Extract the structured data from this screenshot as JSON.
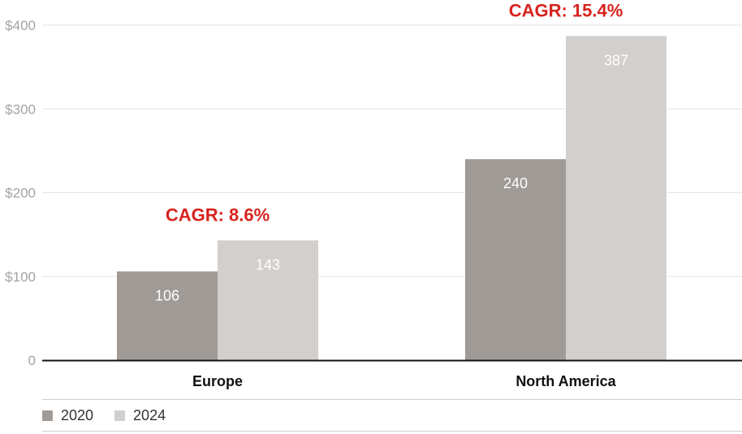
{
  "chart_data": {
    "type": "bar",
    "categories": [
      "Europe",
      "North America"
    ],
    "series": [
      {
        "name": "2020",
        "values": [
          106,
          240
        ],
        "color": "#a09b96"
      },
      {
        "name": "2024",
        "values": [
          143,
          387
        ],
        "color": "#d2cfcd"
      }
    ],
    "ylim": [
      0,
      400
    ],
    "yticks": [
      {
        "value": 0,
        "label": "0"
      },
      {
        "value": 100,
        "label": "$100"
      },
      {
        "value": 200,
        "label": "$200"
      },
      {
        "value": 300,
        "label": "$300"
      },
      {
        "value": 400,
        "label": "$400"
      }
    ],
    "annotations": [
      {
        "category": "Europe",
        "text": "CAGR: 8.6%"
      },
      {
        "category": "North America",
        "text": "CAGR: 15.4%"
      }
    ],
    "annotation_color": "#d7231e",
    "grid": true,
    "legend": "bottom-left",
    "title": "",
    "xlabel": "",
    "ylabel": ""
  }
}
